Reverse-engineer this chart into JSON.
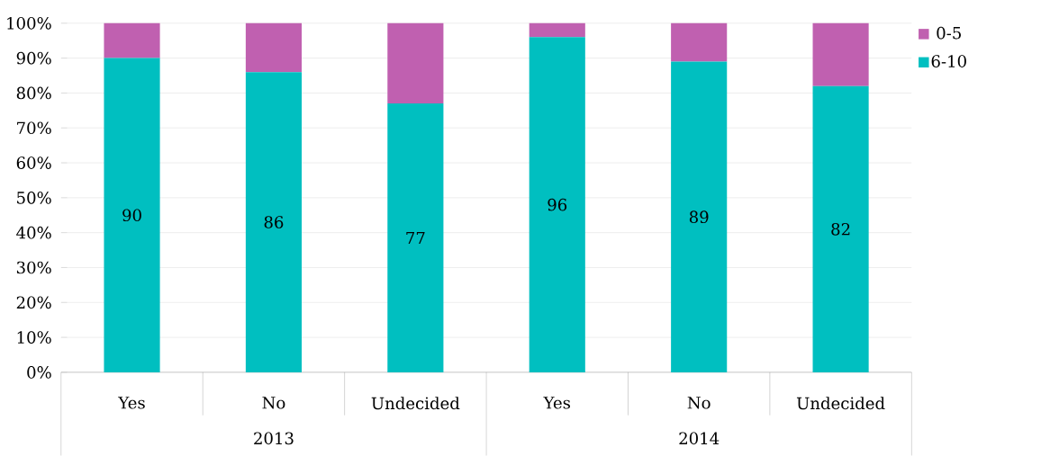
{
  "chart_data": {
    "type": "bar",
    "stacked": true,
    "categories": [
      "Yes",
      "No",
      "Undecided",
      "Yes",
      "No",
      "Undecided"
    ],
    "series": [
      {
        "name": "6-10",
        "color": "#00bfc0",
        "values": [
          90,
          86,
          77,
          96,
          89,
          82
        ],
        "value_labels": [
          "90",
          "86",
          "77",
          "96",
          "89",
          "82"
        ]
      },
      {
        "name": "0-5",
        "color": "#c060b0",
        "values": [
          10,
          14,
          23,
          4,
          11,
          18
        ]
      }
    ],
    "ylim": [
      0,
      100
    ],
    "yticks": [
      {
        "value": 0,
        "label": "0%"
      },
      {
        "value": 10,
        "label": "10%"
      },
      {
        "value": 20,
        "label": "20%"
      },
      {
        "value": 30,
        "label": "30%"
      },
      {
        "value": 40,
        "label": "40%"
      },
      {
        "value": 50,
        "label": "50%"
      },
      {
        "value": 60,
        "label": "60%"
      },
      {
        "value": 70,
        "label": "70%"
      },
      {
        "value": 80,
        "label": "80%"
      },
      {
        "value": 90,
        "label": "90%"
      },
      {
        "value": 100,
        "label": "100%"
      }
    ],
    "grid": "y",
    "legend": "top right",
    "annotations": [
      "2013",
      "2014"
    ]
  }
}
